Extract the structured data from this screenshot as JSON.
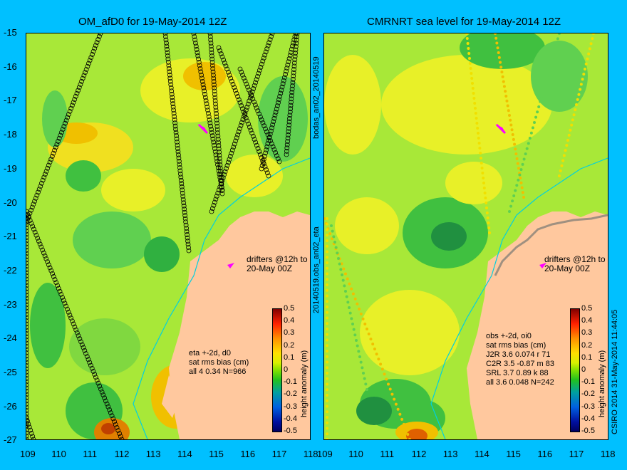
{
  "left_panel": {
    "title": "OM_afD0 for 19-May-2014 12Z",
    "stats": [
      "eta +-2d, d0",
      "sat rms bias (cm)",
      "all 4 0.34 N=966"
    ],
    "drifters": [
      "drifters @12h to",
      "20-May 00Z"
    ]
  },
  "right_panel": {
    "title": "CMRNRT sea level  for 19-May-2014 12Z",
    "stats": [
      "obs +-2d, oi0",
      "sat rms bias (cm)",
      "J2R   3.6 0.074 r 71",
      "C2R   3.5 -0.87 m 83",
      "SRL   3.7 0.89 k 88",
      "all   3.6 0.048 N=242"
    ],
    "drifters": [
      "drifters @12h to",
      "20-May 00Z"
    ]
  },
  "mid_vertical_label": "20140519.obs_an02_eta",
  "mid_vertical_label_top": "bodas_an02_20140519",
  "right_vertical_label": "CSIRO 2014   31-May-2014 11:44:05",
  "y_ticks": [
    "-15",
    "-16",
    "-17",
    "-18",
    "-19",
    "-20",
    "-21",
    "-22",
    "-23",
    "-24",
    "-25",
    "-26",
    "-27"
  ],
  "x_ticks_left": [
    "109",
    "110",
    "111",
    "112",
    "113",
    "114",
    "115",
    "116",
    "117",
    "118"
  ],
  "x_ticks_right": [
    "109",
    "110",
    "111",
    "112",
    "113",
    "114",
    "115",
    "116",
    "117",
    "118"
  ],
  "colorbar": {
    "label": "height anomaly (m)",
    "ticks": [
      "0.5",
      "0.4",
      "0.3",
      "0.2",
      "0.1",
      "0",
      "-0.1",
      "-0.2",
      "-0.3",
      "-0.4",
      "-0.5"
    ]
  },
  "colors": {
    "land": "#ffc89e",
    "ocean_base": "#a8e838",
    "background": "#00c0ff",
    "drifter": "#ff00ff"
  }
}
